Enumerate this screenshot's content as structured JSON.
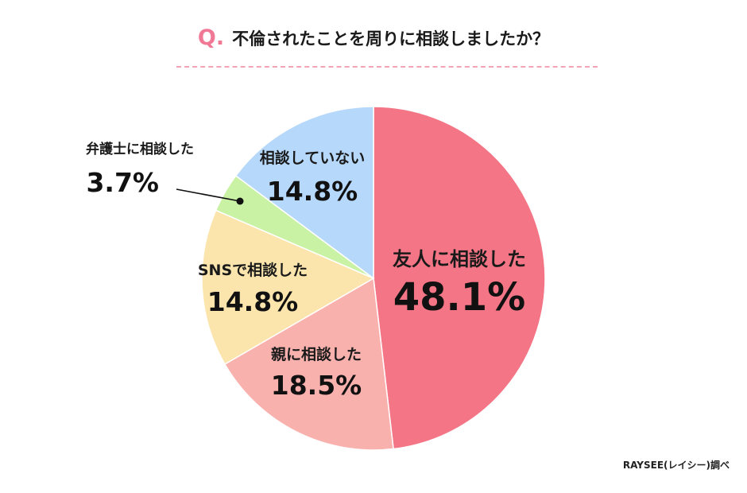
{
  "title": {
    "q_mark": "Q.",
    "question": "不倫されたことを周りに相談しましたか？"
  },
  "credit": "RAYSEE(レイシー)調べ",
  "colors": {
    "accent": "#f07a96",
    "dash": "#f3a3b6"
  },
  "chart_data": {
    "type": "pie",
    "title": "不倫されたことを周りに相談しましたか？",
    "unit": "%",
    "start": "12 o'clock, clockwise",
    "slices": [
      {
        "label": "友人に相談した",
        "value": 48.1,
        "display": "48.1%",
        "color": "#f47585"
      },
      {
        "label": "親に相談した",
        "value": 18.5,
        "display": "18.5%",
        "color": "#f9b1ae"
      },
      {
        "label": "SNSで相談した",
        "value": 14.8,
        "display": "14.8%",
        "color": "#fbe5ad"
      },
      {
        "label": "弁護士に相談した",
        "value": 3.7,
        "display": "3.7%",
        "color": "#c9f2a4"
      },
      {
        "label": "相談していない",
        "value": 14.8,
        "display": "14.8%",
        "color": "#b5d8fb"
      }
    ]
  }
}
